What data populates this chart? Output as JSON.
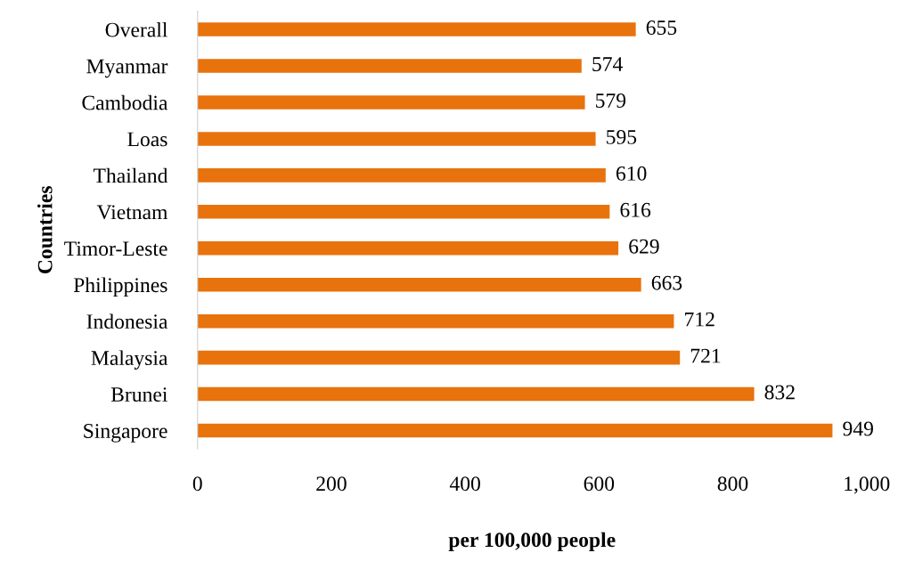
{
  "chart_data": {
    "type": "bar",
    "orientation": "horizontal",
    "xlabel": "per 100,000 people",
    "ylabel": "Countries",
    "categories": [
      "Overall",
      "Myanmar",
      "Cambodia",
      "Loas",
      "Thailand",
      "Vietnam",
      "Timor-Leste",
      "Philippines",
      "Indonesia",
      "Malaysia",
      "Brunei",
      "Singapore"
    ],
    "values": [
      655,
      574,
      579,
      595,
      610,
      616,
      629,
      663,
      712,
      721,
      832,
      949
    ],
    "color": "#e8720c",
    "xlim": [
      0,
      1000
    ],
    "xticks": [
      0,
      200,
      400,
      600,
      800,
      {
        "value": 1000,
        "label": "1,000"
      }
    ],
    "data_labels": true,
    "grid": false,
    "legend": false
  }
}
